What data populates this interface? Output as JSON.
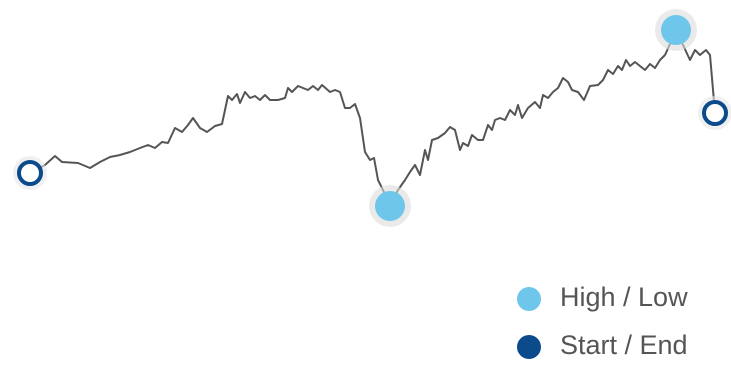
{
  "chart_data": {
    "type": "line",
    "x": [
      0,
      15,
      25,
      32,
      48,
      60,
      70,
      80,
      90,
      100,
      110,
      118,
      125,
      132,
      138,
      145,
      152,
      158,
      163,
      170,
      177,
      185,
      192,
      198,
      202,
      207,
      210,
      215,
      220,
      225,
      230,
      235,
      240,
      248,
      255,
      258,
      262,
      268,
      273,
      278,
      283,
      288,
      292,
      300,
      305,
      310,
      315,
      320,
      325,
      330,
      335,
      340,
      344,
      348,
      353,
      360,
      368,
      375,
      380,
      385,
      390,
      395,
      398,
      402,
      408,
      415,
      420,
      425,
      430,
      433,
      438,
      442,
      448,
      453,
      458,
      462,
      465,
      470,
      475,
      480,
      485,
      488,
      492,
      498,
      505,
      510,
      513,
      518,
      523,
      528,
      533,
      538,
      542,
      548,
      554,
      560,
      568,
      573,
      578,
      583,
      588,
      592,
      596,
      600,
      605,
      610,
      615,
      620,
      625,
      630,
      635,
      640,
      646,
      653,
      660,
      665,
      670,
      676,
      680,
      685
    ],
    "series": [
      {
        "color": "#555555",
        "values": [
          57,
          65,
          74,
          68,
          67,
          62,
          68,
          73,
          75,
          78,
          82,
          85,
          82,
          88,
          87,
          102,
          98,
          105,
          112,
          102,
          98,
          104,
          106,
          134,
          130,
          136,
          127,
          138,
          132,
          134,
          130,
          135,
          130,
          130,
          132,
          142,
          138,
          144,
          142,
          140,
          144,
          140,
          145,
          138,
          140,
          138,
          122,
          122,
          126,
          112,
          78,
          70,
          72,
          50,
          40,
          24,
          40,
          50,
          58,
          65,
          55,
          80,
          70,
          90,
          92,
          97,
          103,
          100,
          80,
          87,
          84,
          95,
          90,
          90,
          105,
          100,
          110,
          112,
          110,
          120,
          115,
          125,
          112,
          122,
          128,
          122,
          135,
          132,
          138,
          142,
          152,
          148,
          140,
          138,
          130,
          144,
          145,
          150,
          160,
          156,
          164,
          160,
          170,
          164,
          168,
          164,
          160,
          166,
          162,
          170,
          175,
          186,
          200,
          185,
          170,
          180,
          175,
          180,
          175,
          117
        ]
      }
    ],
    "xlim": [
      0,
      685
    ],
    "ylim": [
      0,
      230
    ],
    "legend": [
      {
        "label": "High / Low",
        "color": "#6ec6ea"
      },
      {
        "label": "Start / End",
        "color": "#0b4b8c"
      }
    ],
    "legend_position": "bottom-right"
  }
}
